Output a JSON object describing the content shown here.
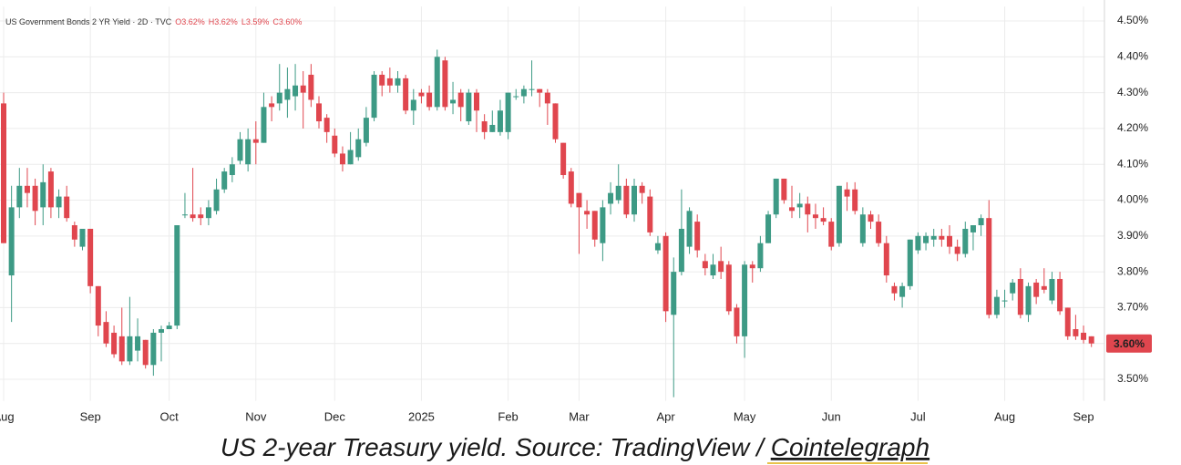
{
  "chart_data": {
    "type": "candlestick",
    "legend_title": "US Government Bonds 2 YR Yield · 2D · TVC",
    "ohlc_labels": [
      "O3.62%",
      "H3.62%",
      "L3.59%",
      "C3.60%"
    ],
    "caption": "US 2-year Treasury yield. Source: TradingView / ",
    "caption_link": "Cointelegraph",
    "up_color": "#3d9a85",
    "down_color": "#e0464e",
    "grid": true,
    "ylim": [
      3.44,
      4.54
    ],
    "yticks": [
      {
        "value": 3.5,
        "label": "3.50%"
      },
      {
        "value": 3.6,
        "label": "3.60%"
      },
      {
        "value": 3.7,
        "label": "3.70%"
      },
      {
        "value": 3.8,
        "label": "3.80%"
      },
      {
        "value": 3.9,
        "label": "3.90%"
      },
      {
        "value": 4.0,
        "label": "4.00%"
      },
      {
        "value": 4.1,
        "label": "4.10%"
      },
      {
        "value": 4.2,
        "label": "4.20%"
      },
      {
        "value": 4.3,
        "label": "4.30%"
      },
      {
        "value": 4.4,
        "label": "4.40%"
      },
      {
        "value": 4.5,
        "label": "4.50%"
      }
    ],
    "last_price": {
      "value": 3.6,
      "label": "3.60%"
    },
    "categories": [
      "Aug",
      null,
      null,
      null,
      null,
      null,
      null,
      null,
      null,
      null,
      null,
      "Sep",
      null,
      null,
      null,
      null,
      null,
      null,
      null,
      null,
      null,
      "Oct",
      null,
      null,
      null,
      null,
      null,
      null,
      null,
      null,
      null,
      null,
      "Nov",
      null,
      null,
      null,
      null,
      null,
      null,
      null,
      null,
      null,
      "Dec",
      null,
      null,
      null,
      null,
      null,
      null,
      null,
      null,
      null,
      null,
      "2025",
      null,
      null,
      null,
      null,
      null,
      null,
      null,
      null,
      null,
      null,
      "Feb",
      null,
      null,
      null,
      null,
      null,
      null,
      null,
      null,
      "Mar",
      null,
      null,
      null,
      null,
      null,
      null,
      null,
      null,
      null,
      null,
      "Apr",
      null,
      null,
      null,
      null,
      null,
      null,
      null,
      null,
      null,
      "May",
      null,
      null,
      null,
      null,
      null,
      null,
      null,
      null,
      null,
      null,
      "Jun",
      null,
      null,
      null,
      null,
      null,
      null,
      null,
      null,
      null,
      null,
      "Jul",
      null,
      null,
      null,
      null,
      null,
      null,
      null,
      null,
      null,
      null,
      "Aug",
      null,
      null,
      null,
      null,
      null,
      null,
      null,
      null,
      null,
      "Sep",
      null
    ],
    "open": [
      4.27,
      3.79,
      3.98,
      4.04,
      4.04,
      3.98,
      4.08,
      3.98,
      4.01,
      3.93,
      3.87,
      3.92,
      3.76,
      3.66,
      3.63,
      3.62,
      3.55,
      3.58,
      3.61,
      3.54,
      3.63,
      3.64,
      3.65,
      3.96,
      3.96,
      3.96,
      3.95,
      3.97,
      4.03,
      4.07,
      4.11,
      4.1,
      4.17,
      4.16,
      4.27,
      4.27,
      4.28,
      4.29,
      4.32,
      4.35,
      4.27,
      4.23,
      4.18,
      4.13,
      4.1,
      4.12,
      4.16,
      4.23,
      4.35,
      4.34,
      4.32,
      4.34,
      4.25,
      4.3,
      4.3,
      4.26,
      4.39,
      4.27,
      4.3,
      4.22,
      4.3,
      4.22,
      4.19,
      4.19,
      4.19,
      4.29,
      4.29,
      4.31,
      4.31,
      4.3,
      4.27,
      4.16,
      4.08,
      4.02,
      3.97,
      3.97,
      3.88,
      3.99,
      4.0,
      4.04,
      3.96,
      4.04,
      4.01,
      3.86,
      3.9,
      3.68,
      3.8,
      3.87,
      3.94,
      3.83,
      3.79,
      3.83,
      3.82,
      3.7,
      3.62,
      3.82,
      3.81,
      3.88,
      3.96,
      4.06,
      3.98,
      3.98,
      3.99,
      3.96,
      3.95,
      3.94,
      3.88,
      4.03,
      4.03,
      3.88,
      3.96,
      3.94,
      3.88,
      3.76,
      3.73,
      3.76,
      3.86,
      3.88,
      3.89,
      3.9,
      3.9,
      3.87,
      3.85,
      3.91,
      3.93,
      3.95,
      3.68,
      3.72,
      3.74,
      3.78,
      3.68,
      3.77,
      3.76,
      3.72,
      3.78,
      3.7,
      3.64,
      3.63,
      3.62
    ],
    "high": [
      4.3,
      4.04,
      4.09,
      4.09,
      4.06,
      4.1,
      4.09,
      4.03,
      4.04,
      3.94,
      3.92,
      3.92,
      3.76,
      3.69,
      3.65,
      3.7,
      3.73,
      3.67,
      3.61,
      3.64,
      3.65,
      3.66,
      3.93,
      4.02,
      4.09,
      3.98,
      4.0,
      4.06,
      4.09,
      4.12,
      4.19,
      4.2,
      4.22,
      4.3,
      4.29,
      4.38,
      4.37,
      4.38,
      4.36,
      4.38,
      4.29,
      4.24,
      4.2,
      4.15,
      4.19,
      4.2,
      4.26,
      4.36,
      4.36,
      4.37,
      4.36,
      4.35,
      4.31,
      4.31,
      4.32,
      4.42,
      4.4,
      4.33,
      4.31,
      4.31,
      4.31,
      4.24,
      4.25,
      4.28,
      4.3,
      4.31,
      4.32,
      4.39,
      4.31,
      4.31,
      4.27,
      4.16,
      4.09,
      4.02,
      4.0,
      3.97,
      4.0,
      4.05,
      4.1,
      4.06,
      4.06,
      4.05,
      4.03,
      3.9,
      3.91,
      3.84,
      4.03,
      3.98,
      3.96,
      3.85,
      3.85,
      3.87,
      3.83,
      3.71,
      3.83,
      3.83,
      3.9,
      3.97,
      4.06,
      4.06,
      4.04,
      4.02,
      4.01,
      3.99,
      3.98,
      3.95,
      4.04,
      4.05,
      4.05,
      3.98,
      3.97,
      3.96,
      3.9,
      3.77,
      3.77,
      3.89,
      3.91,
      3.91,
      3.92,
      3.92,
      3.93,
      3.89,
      3.94,
      3.93,
      3.96,
      4.0,
      3.75,
      3.75,
      3.78,
      3.81,
      3.77,
      3.78,
      3.81,
      3.8,
      3.8,
      3.7,
      3.68,
      3.65,
      3.62
    ],
    "low": [
      3.88,
      3.66,
      3.95,
      3.98,
      3.93,
      3.93,
      3.95,
      3.95,
      3.94,
      3.87,
      3.86,
      3.74,
      3.62,
      3.59,
      3.56,
      3.54,
      3.54,
      3.55,
      3.53,
      3.51,
      3.55,
      3.64,
      3.64,
      3.95,
      3.94,
      3.93,
      3.93,
      3.96,
      4.02,
      4.05,
      4.1,
      4.08,
      4.1,
      4.16,
      4.22,
      4.25,
      4.23,
      4.25,
      4.2,
      4.26,
      4.2,
      4.16,
      4.12,
      4.08,
      4.1,
      4.11,
      4.15,
      4.22,
      4.29,
      4.3,
      4.3,
      4.24,
      4.21,
      4.27,
      4.25,
      4.25,
      4.25,
      4.24,
      4.22,
      4.21,
      4.19,
      4.17,
      4.19,
      4.18,
      4.17,
      4.28,
      4.27,
      4.29,
      4.26,
      4.21,
      4.16,
      4.06,
      3.98,
      3.85,
      3.92,
      3.87,
      3.83,
      3.96,
      3.99,
      3.95,
      3.94,
      3.99,
      3.9,
      3.85,
      3.66,
      3.45,
      3.79,
      3.85,
      3.84,
      3.79,
      3.78,
      3.78,
      3.68,
      3.6,
      3.56,
      3.77,
      3.8,
      3.88,
      3.95,
      3.99,
      3.95,
      3.95,
      3.91,
      3.92,
      3.93,
      3.86,
      3.87,
      3.97,
      3.96,
      3.87,
      3.92,
      3.87,
      3.77,
      3.72,
      3.7,
      3.75,
      3.85,
      3.86,
      3.87,
      3.87,
      3.85,
      3.83,
      3.84,
      3.86,
      3.9,
      3.67,
      3.67,
      3.7,
      3.72,
      3.67,
      3.66,
      3.71,
      3.74,
      3.71,
      3.68,
      3.61,
      3.61,
      3.6,
      3.59
    ],
    "close": [
      3.88,
      3.98,
      4.04,
      4.02,
      3.97,
      4.05,
      3.98,
      4.01,
      3.95,
      3.89,
      3.92,
      3.76,
      3.65,
      3.6,
      3.57,
      3.55,
      3.62,
      3.62,
      3.54,
      3.63,
      3.64,
      3.65,
      3.93,
      3.96,
      3.95,
      3.95,
      3.98,
      4.03,
      4.08,
      4.1,
      4.17,
      4.17,
      4.16,
      4.26,
      4.26,
      4.3,
      4.31,
      4.32,
      4.3,
      4.28,
      4.22,
      4.19,
      4.13,
      4.1,
      4.14,
      4.17,
      4.23,
      4.35,
      4.32,
      4.32,
      4.34,
      4.25,
      4.28,
      4.29,
      4.26,
      4.4,
      4.26,
      4.28,
      4.26,
      4.3,
      4.25,
      4.19,
      4.21,
      4.25,
      4.3,
      4.29,
      4.31,
      4.31,
      4.3,
      4.27,
      4.17,
      4.07,
      3.99,
      3.98,
      3.96,
      3.89,
      3.98,
      4.02,
      4.04,
      3.96,
      4.04,
      4.02,
      3.91,
      3.88,
      3.69,
      3.8,
      3.92,
      3.97,
      3.86,
      3.81,
      3.82,
      3.8,
      3.69,
      3.62,
      3.82,
      3.81,
      3.88,
      3.96,
      4.06,
      4.0,
      3.97,
      3.99,
      3.96,
      3.95,
      3.94,
      3.87,
      4.04,
      4.01,
      3.97,
      3.96,
      3.94,
      3.88,
      3.79,
      3.74,
      3.76,
      3.89,
      3.9,
      3.9,
      3.9,
      3.89,
      3.87,
      3.85,
      3.92,
      3.93,
      3.95,
      3.68,
      3.73,
      3.72,
      3.77,
      3.68,
      3.76,
      3.73,
      3.75,
      3.78,
      3.69,
      3.62,
      3.62,
      3.61,
      3.6
    ]
  }
}
